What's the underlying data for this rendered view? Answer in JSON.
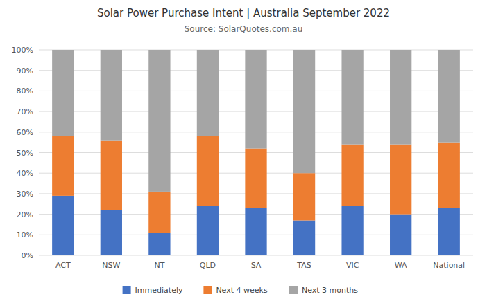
{
  "chart_data": {
    "type": "bar",
    "stacked": true,
    "title": "Solar Power Purchase Intent | Australia September 2022",
    "subtitle": "Source: SolarQuotes.com.au",
    "categories": [
      "ACT",
      "NSW",
      "NT",
      "QLD",
      "SA",
      "TAS",
      "VIC",
      "WA",
      "National"
    ],
    "series": [
      {
        "name": "Immediately",
        "color": "#4472c4",
        "values": [
          29,
          22,
          11,
          24,
          23,
          17,
          24,
          20,
          23
        ]
      },
      {
        "name": "Next 4 weeks",
        "color": "#ed7d31",
        "values": [
          29,
          34,
          20,
          34,
          29,
          23,
          30,
          34,
          32
        ]
      },
      {
        "name": "Next 3 months",
        "color": "#a5a5a5",
        "values": [
          42,
          44,
          69,
          42,
          48,
          60,
          46,
          46,
          45
        ]
      }
    ],
    "ylim": [
      0,
      100
    ],
    "yticks": [
      {
        "value": 0,
        "label": "0%"
      },
      {
        "value": 10,
        "label": "10%"
      },
      {
        "value": 20,
        "label": "20%"
      },
      {
        "value": 30,
        "label": "30%"
      },
      {
        "value": 40,
        "label": "40%"
      },
      {
        "value": 50,
        "label": "50%"
      },
      {
        "value": 60,
        "label": "60%"
      },
      {
        "value": 70,
        "label": "70%"
      },
      {
        "value": 80,
        "label": "80%"
      },
      {
        "value": 90,
        "label": "90%"
      },
      {
        "value": 100,
        "label": "100%"
      }
    ],
    "grid": true,
    "legend": "bottom"
  }
}
